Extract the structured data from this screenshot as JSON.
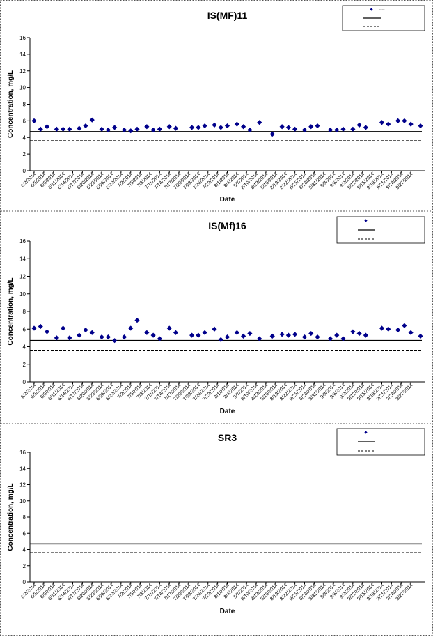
{
  "dates": [
    "6/2/2014",
    "6/5/2014",
    "6/8/2014",
    "6/11/2014",
    "6/14/2014",
    "6/17/2014",
    "6/20/2014",
    "6/23/2014",
    "6/26/2014",
    "6/29/2014",
    "7/2/2014",
    "7/5/2014",
    "7/8/2014",
    "7/11/2014",
    "7/14/2014",
    "7/17/2014",
    "7/20/2014",
    "7/23/2014",
    "7/26/2014",
    "7/29/2014",
    "8/1/2014",
    "8/4/2014",
    "8/7/2014",
    "8/10/2014",
    "8/13/2014",
    "8/16/2014",
    "8/19/2014",
    "8/22/2014",
    "8/25/2014",
    "8/28/2014",
    "8/31/2014",
    "9/3/2014",
    "9/6/2014",
    "9/9/2014",
    "9/12/2014",
    "9/15/2014",
    "9/18/2014",
    "9/21/2014",
    "9/24/2014",
    "9/27/2014"
  ],
  "colors": {
    "marker": "#00008b",
    "solid_line": "#000000",
    "dashed_line": "#000000"
  },
  "chart_data": [
    {
      "type": "scatter",
      "title": "IS(MF)11",
      "xlabel": "Date",
      "ylabel": "Concentration, mg/L",
      "ylim": [
        0,
        16
      ],
      "yticks": [
        0,
        2,
        4,
        6,
        8,
        10,
        12,
        14,
        16
      ],
      "grid": false,
      "legend_position": "top-right",
      "legend_entries": [
        "Nitrate",
        "",
        ""
      ],
      "hlines": [
        {
          "y": 4.7,
          "style": "solid"
        },
        {
          "y": 3.6,
          "style": "dashed"
        }
      ],
      "points": [
        {
          "x": "6/2/2014",
          "y": 6.0
        },
        {
          "x": "6/4/2014",
          "y": 5.0
        },
        {
          "x": "6/6/2014",
          "y": 5.3
        },
        {
          "x": "6/9/2014",
          "y": 5.0
        },
        {
          "x": "6/11/2014",
          "y": 5.0
        },
        {
          "x": "6/13/2014",
          "y": 5.0
        },
        {
          "x": "6/16/2014",
          "y": 5.1
        },
        {
          "x": "6/18/2014",
          "y": 5.4
        },
        {
          "x": "6/20/2014",
          "y": 6.1
        },
        {
          "x": "6/23/2014",
          "y": 5.0
        },
        {
          "x": "6/25/2014",
          "y": 4.9
        },
        {
          "x": "6/27/2014",
          "y": 5.2
        },
        {
          "x": "6/30/2014",
          "y": 4.9
        },
        {
          "x": "7/2/2014",
          "y": 4.8
        },
        {
          "x": "7/4/2014",
          "y": 5.0
        },
        {
          "x": "7/7/2014",
          "y": 5.3
        },
        {
          "x": "7/9/2014",
          "y": 4.9
        },
        {
          "x": "7/11/2014",
          "y": 5.0
        },
        {
          "x": "7/14/2014",
          "y": 5.3
        },
        {
          "x": "7/16/2014",
          "y": 5.1
        },
        {
          "x": "7/21/2014",
          "y": 5.2
        },
        {
          "x": "7/23/2014",
          "y": 5.2
        },
        {
          "x": "7/25/2014",
          "y": 5.4
        },
        {
          "x": "7/28/2014",
          "y": 5.5
        },
        {
          "x": "7/30/2014",
          "y": 5.2
        },
        {
          "x": "8/1/2014",
          "y": 5.4
        },
        {
          "x": "8/4/2014",
          "y": 5.6
        },
        {
          "x": "8/6/2014",
          "y": 5.3
        },
        {
          "x": "8/8/2014",
          "y": 4.9
        },
        {
          "x": "8/11/2014",
          "y": 5.8
        },
        {
          "x": "8/15/2014",
          "y": 4.4
        },
        {
          "x": "8/18/2014",
          "y": 5.3
        },
        {
          "x": "8/20/2014",
          "y": 5.2
        },
        {
          "x": "8/22/2014",
          "y": 5.0
        },
        {
          "x": "8/25/2014",
          "y": 4.9
        },
        {
          "x": "8/27/2014",
          "y": 5.3
        },
        {
          "x": "8/29/2014",
          "y": 5.4
        },
        {
          "x": "9/2/2014",
          "y": 4.9
        },
        {
          "x": "9/4/2014",
          "y": 4.9
        },
        {
          "x": "9/6/2014",
          "y": 5.0
        },
        {
          "x": "9/9/2014",
          "y": 5.0
        },
        {
          "x": "9/11/2014",
          "y": 5.5
        },
        {
          "x": "9/13/2014",
          "y": 5.2
        },
        {
          "x": "9/18/2014",
          "y": 5.8
        },
        {
          "x": "9/20/2014",
          "y": 5.6
        },
        {
          "x": "9/23/2014",
          "y": 6.0
        },
        {
          "x": "9/25/2014",
          "y": 6.0
        },
        {
          "x": "9/27/2014",
          "y": 5.6
        },
        {
          "x": "9/30/2014",
          "y": 5.4
        }
      ]
    },
    {
      "type": "scatter",
      "title": "IS(Mf)16",
      "xlabel": "Date",
      "ylabel": "Concentration, mg/L",
      "ylim": [
        0,
        16
      ],
      "yticks": [
        0,
        2,
        4,
        6,
        8,
        10,
        12,
        14,
        16
      ],
      "grid": false,
      "legend_position": "top-right",
      "legend_entries": [
        "",
        "",
        ""
      ],
      "hlines": [
        {
          "y": 4.7,
          "style": "solid"
        },
        {
          "y": 3.6,
          "style": "dashed"
        }
      ],
      "points": [
        {
          "x": "6/2/2014",
          "y": 6.1
        },
        {
          "x": "6/4/2014",
          "y": 6.3
        },
        {
          "x": "6/6/2014",
          "y": 5.7
        },
        {
          "x": "6/9/2014",
          "y": 5.0
        },
        {
          "x": "6/11/2014",
          "y": 6.1
        },
        {
          "x": "6/13/2014",
          "y": 5.0
        },
        {
          "x": "6/16/2014",
          "y": 5.3
        },
        {
          "x": "6/18/2014",
          "y": 5.9
        },
        {
          "x": "6/20/2014",
          "y": 5.6
        },
        {
          "x": "6/23/2014",
          "y": 5.1
        },
        {
          "x": "6/25/2014",
          "y": 5.1
        },
        {
          "x": "6/27/2014",
          "y": 4.7
        },
        {
          "x": "6/30/2014",
          "y": 5.1
        },
        {
          "x": "7/2/2014",
          "y": 6.1
        },
        {
          "x": "7/4/2014",
          "y": 7.0
        },
        {
          "x": "7/7/2014",
          "y": 5.6
        },
        {
          "x": "7/9/2014",
          "y": 5.3
        },
        {
          "x": "7/11/2014",
          "y": 4.9
        },
        {
          "x": "7/14/2014",
          "y": 6.1
        },
        {
          "x": "7/16/2014",
          "y": 5.6
        },
        {
          "x": "7/21/2014",
          "y": 5.3
        },
        {
          "x": "7/23/2014",
          "y": 5.3
        },
        {
          "x": "7/25/2014",
          "y": 5.6
        },
        {
          "x": "7/28/2014",
          "y": 6.0
        },
        {
          "x": "7/30/2014",
          "y": 4.8
        },
        {
          "x": "8/1/2014",
          "y": 5.1
        },
        {
          "x": "8/4/2014",
          "y": 5.6
        },
        {
          "x": "8/6/2014",
          "y": 5.2
        },
        {
          "x": "8/8/2014",
          "y": 5.5
        },
        {
          "x": "8/11/2014",
          "y": 4.9
        },
        {
          "x": "8/15/2014",
          "y": 5.2
        },
        {
          "x": "8/18/2014",
          "y": 5.4
        },
        {
          "x": "8/20/2014",
          "y": 5.3
        },
        {
          "x": "8/22/2014",
          "y": 5.4
        },
        {
          "x": "8/25/2014",
          "y": 5.1
        },
        {
          "x": "8/27/2014",
          "y": 5.5
        },
        {
          "x": "8/29/2014",
          "y": 5.1
        },
        {
          "x": "9/2/2014",
          "y": 4.9
        },
        {
          "x": "9/4/2014",
          "y": 5.3
        },
        {
          "x": "9/6/2014",
          "y": 4.9
        },
        {
          "x": "9/9/2014",
          "y": 5.7
        },
        {
          "x": "9/11/2014",
          "y": 5.5
        },
        {
          "x": "9/13/2014",
          "y": 5.3
        },
        {
          "x": "9/18/2014",
          "y": 6.1
        },
        {
          "x": "9/20/2014",
          "y": 6.0
        },
        {
          "x": "9/23/2014",
          "y": 5.9
        },
        {
          "x": "9/25/2014",
          "y": 6.4
        },
        {
          "x": "9/27/2014",
          "y": 5.6
        },
        {
          "x": "9/30/2014",
          "y": 5.2
        }
      ]
    },
    {
      "type": "scatter",
      "title": "SR3",
      "xlabel": "Date",
      "ylabel": "Concentration, mg/L",
      "ylim": [
        0,
        16
      ],
      "yticks": [
        0,
        2,
        4,
        6,
        8,
        10,
        12,
        14,
        16
      ],
      "grid": false,
      "legend_position": "top-right",
      "legend_entries": [
        "",
        "",
        ""
      ],
      "hlines": [
        {
          "y": 4.7,
          "style": "solid"
        },
        {
          "y": 3.6,
          "style": "dashed"
        }
      ],
      "points": []
    }
  ]
}
